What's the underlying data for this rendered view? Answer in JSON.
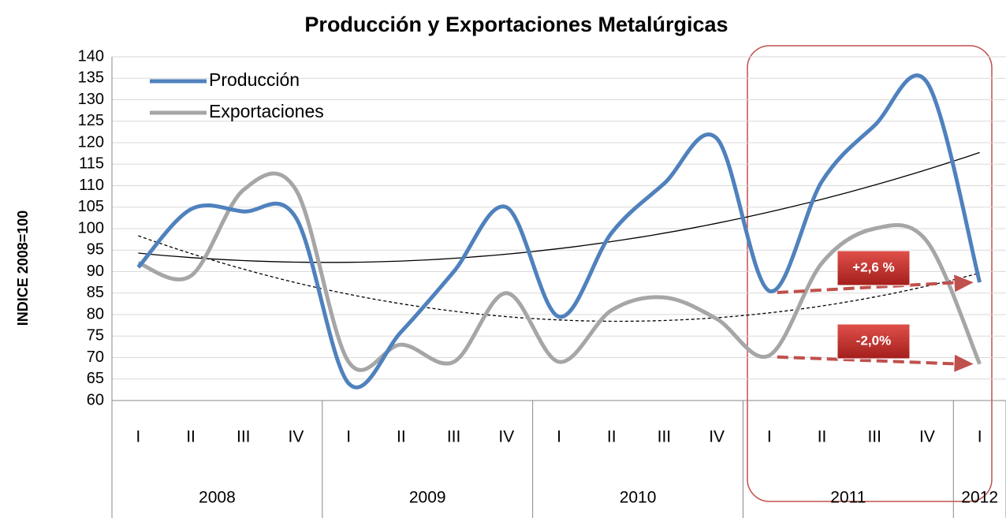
{
  "chart_data": {
    "type": "line",
    "title": "Producción  y Exportaciones Metalúrgicas",
    "y_label": "INDICE 2008=100",
    "categories": [
      "I",
      "II",
      "III",
      "IV",
      "I",
      "II",
      "III",
      "IV",
      "I",
      "II",
      "III",
      "IV",
      "I",
      "II",
      "III",
      "IV",
      "I"
    ],
    "groups": [
      {
        "name": "2008",
        "count": 4
      },
      {
        "name": "2009",
        "count": 4
      },
      {
        "name": "2010",
        "count": 4
      },
      {
        "name": "2011",
        "count": 4
      },
      {
        "name": "2012",
        "count": 1
      }
    ],
    "series": [
      {
        "name": "Producción",
        "color": "#4f81bd",
        "values": [
          91,
          104.5,
          104,
          102.5,
          64,
          76,
          90,
          105,
          79.5,
          99,
          110.5,
          121,
          85.5,
          111,
          124,
          134,
          87.5
        ]
      },
      {
        "name": "Exportaciones",
        "color": "#a6a6a6",
        "values": [
          92,
          89,
          109,
          109,
          69,
          73,
          69,
          85,
          69,
          81,
          84,
          79,
          70.5,
          92,
          100,
          97,
          68.5
        ]
      }
    ],
    "trendline": {
      "type": "polynomial",
      "order": 2
    },
    "annotations": [
      "+2,6 %",
      "-2,0%"
    ],
    "ylim": [
      60,
      140
    ],
    "yticks": [
      60,
      65,
      70,
      75,
      80,
      85,
      90,
      95,
      100,
      105,
      110,
      115,
      120,
      125,
      130,
      135,
      140
    ],
    "grid": true,
    "legend": "upper left"
  }
}
